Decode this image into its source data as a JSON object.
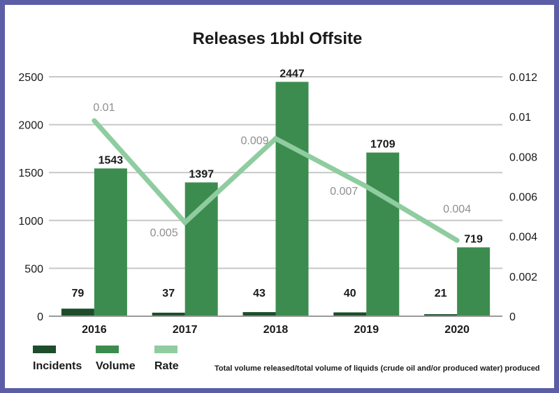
{
  "chart_data": {
    "type": "bar",
    "title": "Releases 1bbl Offsite",
    "categories": [
      "2016",
      "2017",
      "2018",
      "2019",
      "2020"
    ],
    "series": [
      {
        "name": "Incidents",
        "kind": "bar",
        "axis": "left",
        "color": "#1e4d2b",
        "values": [
          79,
          37,
          43,
          40,
          21
        ],
        "labels": [
          "79",
          "37",
          "43",
          "40",
          "21"
        ]
      },
      {
        "name": "Volume",
        "kind": "bar",
        "axis": "left",
        "color": "#3d8c4f",
        "values": [
          1543,
          1397,
          2447,
          1709,
          719
        ],
        "labels": [
          "1543",
          "1397",
          "2447",
          "1709",
          "719"
        ]
      },
      {
        "name": "Rate",
        "kind": "line",
        "axis": "right",
        "color": "#8fcc9f",
        "values": [
          0.0098,
          0.0047,
          0.0089,
          0.0065,
          0.0038
        ],
        "labels": [
          "0.01",
          "0.005",
          "0.009",
          "0.007",
          "0.004"
        ]
      }
    ],
    "left_axis": {
      "ylim": [
        0,
        2500
      ],
      "ticks": [
        0,
        500,
        1000,
        1500,
        2000,
        2500
      ],
      "tick_labels": [
        "0",
        "500",
        "1000",
        "1500",
        "2000",
        "2500"
      ]
    },
    "right_axis": {
      "ylim": [
        0,
        0.012
      ],
      "ticks": [
        0,
        0.002,
        0.004,
        0.006,
        0.008,
        0.01,
        0.012
      ],
      "tick_labels": [
        "0",
        "0.002",
        "0.004",
        "0.006",
        "0.008",
        "0.01",
        "0.012"
      ]
    },
    "grid": true,
    "legend": {
      "position": "bottom-left",
      "entries": [
        "Incidents",
        "Volume",
        "Rate"
      ]
    },
    "footnote": "Total volume released/total volume of liquids (crude oil and/or produced water) produced"
  },
  "colors": {
    "frame": "#5b5ea6",
    "grid": "#c8c8c8",
    "axis": "#9a9a9a"
  }
}
